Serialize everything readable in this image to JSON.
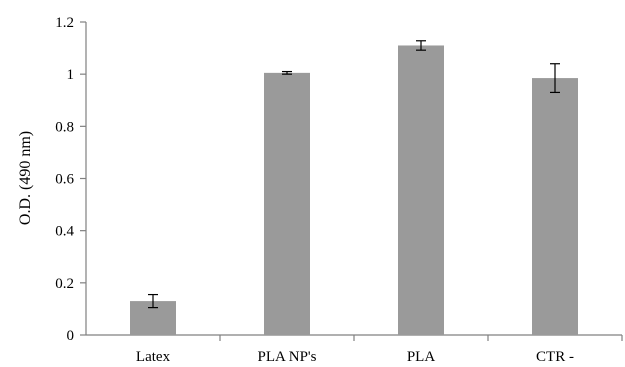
{
  "chart_data": {
    "type": "bar",
    "title": "",
    "xlabel": "",
    "ylabel": "O.D. (490 nm)",
    "ylim": [
      0,
      1.2
    ],
    "yticks": [
      "0",
      "0.2",
      "0.4",
      "0.6",
      "0.8",
      "1",
      "1.2"
    ],
    "categories": [
      "Latex",
      "PLA NP's",
      "PLA",
      "CTR -"
    ],
    "values": [
      0.13,
      1.005,
      1.11,
      0.985
    ],
    "errors": [
      0.025,
      0.005,
      0.018,
      0.055
    ],
    "grid": false,
    "legend": "none",
    "bar_color": "#9a9a9a",
    "axis_color": "#808080"
  }
}
